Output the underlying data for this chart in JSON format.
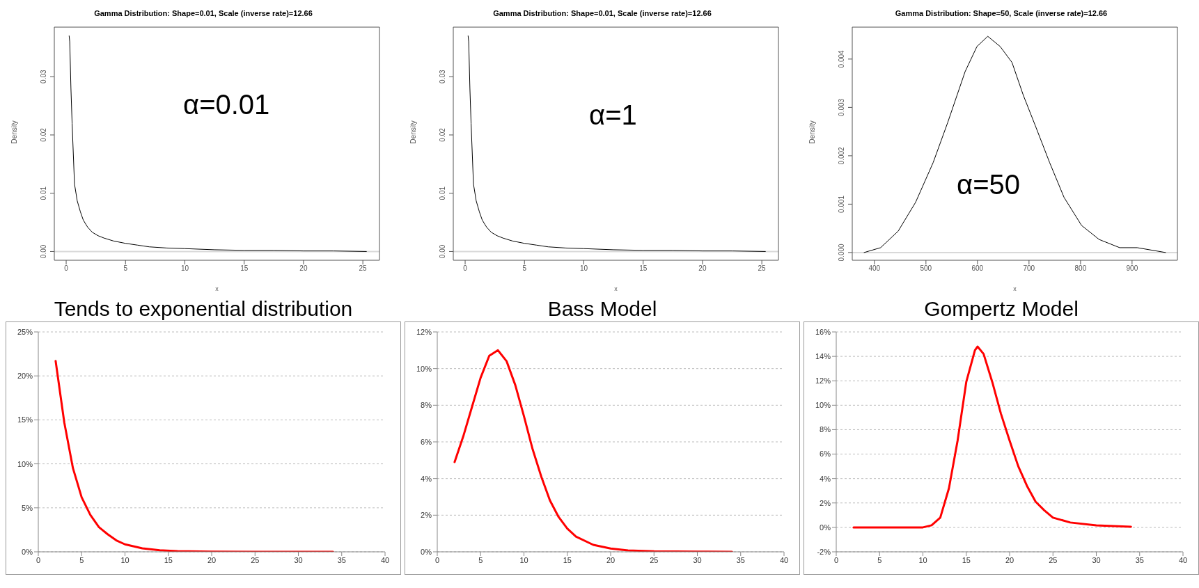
{
  "chart_data": [
    {
      "type": "line",
      "title": "Gamma Distribution:  Shape=0.01, Scale (inverse rate)=12.66",
      "xlabel": "x",
      "ylabel": "Density",
      "annotations": [
        "α=0.01"
      ],
      "grid": false,
      "x": [
        0.25,
        0.3,
        0.4,
        0.5,
        0.7,
        0.93,
        1.2,
        1.44,
        1.8,
        2.2,
        2.7,
        3.2,
        4,
        5,
        6,
        7,
        8.5,
        10,
        12.5,
        15,
        17.5,
        20,
        22.5,
        25.3
      ],
      "series": [
        {
          "color": "#000000",
          "values": [
            0.037,
            0.036,
            0.028,
            0.022,
            0.0116,
            0.0087,
            0.0068,
            0.0054,
            0.0042,
            0.0033,
            0.0027,
            0.0023,
            0.0018,
            0.0014,
            0.0011,
            0.0008,
            0.0006,
            0.0005,
            0.0003,
            0.0002,
            0.0002,
            0.0001,
            0.0001,
            0
          ]
        }
      ],
      "xlim": [
        -1,
        26.4
      ],
      "ylim": [
        -0.0015,
        0.0385
      ],
      "xticks": [
        0,
        5,
        10,
        15,
        20,
        25
      ],
      "yticks": [
        {
          "value": 0,
          "label": "0.00"
        },
        {
          "value": 0.01,
          "label": "0.01"
        },
        {
          "value": 0.02,
          "label": "0.02"
        },
        {
          "value": 0.03,
          "label": "0.03"
        }
      ],
      "ref_lines": [
        {
          "axis": "y",
          "value": 0,
          "color": "#d9d9d9"
        }
      ]
    },
    {
      "type": "line",
      "title": "Gamma Distribution:  Shape=0.01, Scale (inverse rate)=12.66",
      "xlabel": "x",
      "ylabel": "Density",
      "annotations": [
        "α=1"
      ],
      "grid": false,
      "x": [
        0.25,
        0.3,
        0.4,
        0.5,
        0.7,
        0.93,
        1.2,
        1.44,
        1.8,
        2.2,
        2.7,
        3.2,
        4,
        5,
        6,
        7,
        8.5,
        10,
        12.5,
        15,
        17.5,
        20,
        22.5,
        25.3
      ],
      "series": [
        {
          "color": "#000000",
          "values": [
            0.037,
            0.036,
            0.028,
            0.022,
            0.0116,
            0.0087,
            0.0068,
            0.0054,
            0.0042,
            0.0033,
            0.0027,
            0.0023,
            0.0018,
            0.0014,
            0.0011,
            0.0008,
            0.0006,
            0.0005,
            0.0003,
            0.0002,
            0.0002,
            0.0001,
            0.0001,
            0
          ]
        }
      ],
      "xlim": [
        -1,
        26.4
      ],
      "ylim": [
        -0.0015,
        0.0385
      ],
      "xticks": [
        0,
        5,
        10,
        15,
        20,
        25
      ],
      "yticks": [
        {
          "value": 0,
          "label": "0.00"
        },
        {
          "value": 0.01,
          "label": "0.01"
        },
        {
          "value": 0.02,
          "label": "0.02"
        },
        {
          "value": 0.03,
          "label": "0.03"
        }
      ],
      "ref_lines": [
        {
          "axis": "y",
          "value": 0,
          "color": "#d9d9d9"
        }
      ]
    },
    {
      "type": "line",
      "title": "Gamma Distribution:  Shape=50, Scale (inverse rate)=12.66",
      "xlabel": "x",
      "ylabel": "Density",
      "annotations": [
        "α=50"
      ],
      "grid": false,
      "x": [
        380,
        412,
        446,
        480,
        514,
        542,
        576,
        599,
        620,
        644,
        667,
        689,
        712,
        740,
        768,
        802,
        836,
        876,
        910,
        965
      ],
      "series": [
        {
          "color": "#000000",
          "values": [
            0,
            0.0001,
            0.00044,
            0.00104,
            0.00186,
            0.00268,
            0.00374,
            0.00426,
            0.00447,
            0.00426,
            0.00393,
            0.00325,
            0.00263,
            0.00186,
            0.00114,
            0.00056,
            0.00027,
            0.0001,
            0.0001,
            0
          ]
        }
      ],
      "xlim": [
        357,
        988
      ],
      "ylim": [
        -0.00016,
        0.00466
      ],
      "xticks": [
        400,
        500,
        600,
        700,
        800,
        900
      ],
      "yticks": [
        {
          "value": 0,
          "label": "0.000"
        },
        {
          "value": 0.001,
          "label": "0.001"
        },
        {
          "value": 0.002,
          "label": "0.002"
        },
        {
          "value": 0.003,
          "label": "0.003"
        },
        {
          "value": 0.004,
          "label": "0.004"
        }
      ],
      "ref_lines": [
        {
          "axis": "y",
          "value": 0,
          "color": "#d9d9d9"
        }
      ]
    },
    {
      "type": "line",
      "title": "Tends to exponential distribution",
      "grid": "y",
      "x": [
        2,
        3,
        4,
        5,
        6,
        7,
        8,
        9,
        10,
        12,
        14,
        16,
        20,
        25,
        34
      ],
      "series": [
        {
          "color": "#ff0000",
          "values": [
            21.7,
            14.7,
            9.5,
            6.2,
            4.2,
            2.8,
            2.0,
            1.3,
            0.85,
            0.4,
            0.17,
            0.08,
            0.02,
            0,
            0
          ]
        }
      ],
      "xlim": [
        0,
        40
      ],
      "ylim": [
        0,
        25
      ],
      "xticks": [
        0,
        5,
        10,
        15,
        20,
        25,
        30,
        35,
        40
      ],
      "yticks": [
        {
          "value": 0,
          "label": "0%"
        },
        {
          "value": 5,
          "label": "5%"
        },
        {
          "value": 10,
          "label": "10%"
        },
        {
          "value": 15,
          "label": "15%"
        },
        {
          "value": 20,
          "label": "20%"
        },
        {
          "value": 25,
          "label": "25%"
        }
      ]
    },
    {
      "type": "line",
      "title": "Bass Model",
      "grid": "y",
      "x": [
        2,
        3,
        4,
        5,
        6,
        7,
        8,
        9,
        10,
        11,
        12,
        13,
        14,
        15,
        16,
        18,
        20,
        22,
        25,
        30,
        34
      ],
      "series": [
        {
          "color": "#ff0000",
          "values": [
            4.9,
            6.3,
            7.9,
            9.5,
            10.7,
            11.0,
            10.4,
            9.1,
            7.4,
            5.6,
            4.1,
            2.8,
            1.9,
            1.27,
            0.83,
            0.38,
            0.18,
            0.08,
            0.03,
            0.01,
            0
          ]
        }
      ],
      "xlim": [
        0,
        40
      ],
      "ylim": [
        0,
        12
      ],
      "xticks": [
        0,
        5,
        10,
        15,
        20,
        25,
        30,
        35,
        40
      ],
      "yticks": [
        {
          "value": 0,
          "label": "0%"
        },
        {
          "value": 2,
          "label": "2%"
        },
        {
          "value": 4,
          "label": "4%"
        },
        {
          "value": 6,
          "label": "6%"
        },
        {
          "value": 8,
          "label": "8%"
        },
        {
          "value": 10,
          "label": "10%"
        },
        {
          "value": 12,
          "label": "12%"
        }
      ]
    },
    {
      "type": "line",
      "title": "Gompertz Model",
      "grid": "y",
      "x": [
        2,
        5,
        8,
        10,
        11,
        12,
        13,
        14,
        15,
        16,
        16.3,
        17,
        18,
        19,
        20,
        21,
        22,
        23,
        24,
        25,
        27,
        30,
        34
      ],
      "series": [
        {
          "color": "#ff0000",
          "values": [
            0,
            0,
            0,
            0,
            0.17,
            0.8,
            3.2,
            7.1,
            11.9,
            14.5,
            14.8,
            14.2,
            11.9,
            9.3,
            7.1,
            5.0,
            3.4,
            2.1,
            1.4,
            0.8,
            0.4,
            0.17,
            0.05
          ]
        }
      ],
      "xlim": [
        0,
        40
      ],
      "ylim": [
        -2,
        16
      ],
      "xticks": [
        0,
        5,
        10,
        15,
        20,
        25,
        30,
        35,
        40
      ],
      "yticks": [
        {
          "value": -2,
          "label": "-2%"
        },
        {
          "value": 0,
          "label": "0%"
        },
        {
          "value": 2,
          "label": "2%"
        },
        {
          "value": 4,
          "label": "4%"
        },
        {
          "value": 6,
          "label": "6%"
        },
        {
          "value": 8,
          "label": "8%"
        },
        {
          "value": 10,
          "label": "10%"
        },
        {
          "value": 12,
          "label": "12%"
        },
        {
          "value": 14,
          "label": "14%"
        },
        {
          "value": 16,
          "label": "16%"
        }
      ]
    }
  ]
}
